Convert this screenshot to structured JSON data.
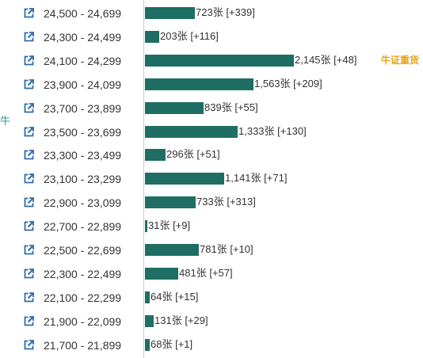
{
  "side_label": "牛",
  "colors": {
    "bar": "#1e6e63",
    "icon": "#2b6cb0",
    "tag": "#e8a317"
  },
  "icon_name": "external-link-icon",
  "chart_data": {
    "type": "bar",
    "orientation": "horizontal",
    "unit": "张",
    "xlim": [
      0,
      2300
    ],
    "rows": [
      {
        "range": "24,500 - 24,699",
        "value": 723,
        "value_label": "723张",
        "change": "[+339]"
      },
      {
        "range": "24,300 - 24,499",
        "value": 203,
        "value_label": "203张",
        "change": "[+116]"
      },
      {
        "range": "24,100 - 24,299",
        "value": 2145,
        "value_label": "2,145张",
        "change": "[+48]",
        "tag": "牛证重货"
      },
      {
        "range": "23,900 - 24,099",
        "value": 1563,
        "value_label": "1,563张",
        "change": "[+209]"
      },
      {
        "range": "23,700 - 23,899",
        "value": 839,
        "value_label": "839张",
        "change": "[+55]"
      },
      {
        "range": "23,500 - 23,699",
        "value": 1333,
        "value_label": "1,333张",
        "change": "[+130]"
      },
      {
        "range": "23,300 - 23,499",
        "value": 296,
        "value_label": "296张",
        "change": "[+51]"
      },
      {
        "range": "23,100 - 23,299",
        "value": 1141,
        "value_label": "1,141张",
        "change": "[+71]"
      },
      {
        "range": "22,900 - 23,099",
        "value": 733,
        "value_label": "733张",
        "change": "[+313]"
      },
      {
        "range": "22,700 - 22,899",
        "value": 31,
        "value_label": "31张",
        "change": "[+9]"
      },
      {
        "range": "22,500 - 22,699",
        "value": 781,
        "value_label": "781张",
        "change": "[+10]"
      },
      {
        "range": "22,300 - 22,499",
        "value": 481,
        "value_label": "481张",
        "change": "[+57]"
      },
      {
        "range": "22,100 - 22,299",
        "value": 64,
        "value_label": "64张",
        "change": "[+15]"
      },
      {
        "range": "21,900 - 22,099",
        "value": 131,
        "value_label": "131张",
        "change": "[+29]"
      },
      {
        "range": "21,700 - 21,899",
        "value": 68,
        "value_label": "68张",
        "change": "[+1]"
      }
    ]
  }
}
